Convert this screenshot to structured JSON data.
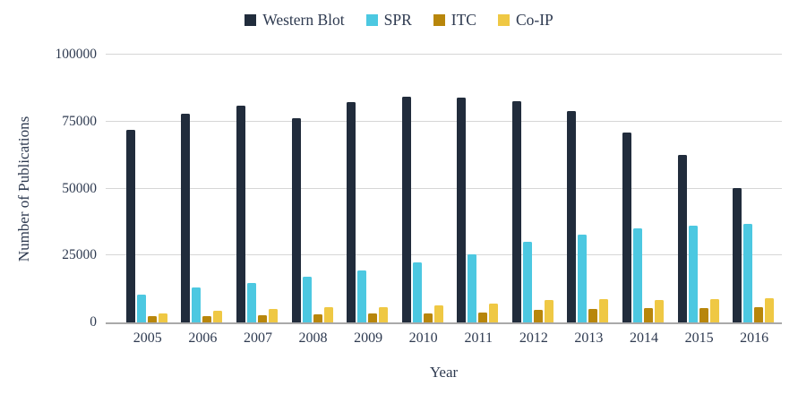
{
  "chart_data": {
    "type": "bar",
    "title": "",
    "xlabel": "Year",
    "ylabel": "Number of Publications",
    "ylim": [
      0,
      100000
    ],
    "yticks": [
      0,
      25000,
      50000,
      75000,
      100000
    ],
    "ytick_labels": [
      "0",
      "25000",
      "50000",
      "75000",
      "100000"
    ],
    "grid": "horizontal",
    "legend_position": "top-center",
    "categories": [
      "2005",
      "2006",
      "2007",
      "2008",
      "2009",
      "2010",
      "2011",
      "2012",
      "2013",
      "2014",
      "2015",
      "2016"
    ],
    "series": [
      {
        "name": "Western Blot",
        "color": "#212c3c",
        "values": [
          72000,
          78000,
          80800,
          76200,
          82200,
          84300,
          83800,
          82500,
          79000,
          70800,
          62500,
          50300
        ]
      },
      {
        "name": "SPR",
        "color": "#4cc8e1",
        "values": [
          10400,
          13000,
          14700,
          17000,
          19300,
          22300,
          25300,
          30000,
          32800,
          35200,
          36200,
          36700
        ]
      },
      {
        "name": "ITC",
        "color": "#b8860b",
        "values": [
          2300,
          2200,
          2800,
          3000,
          3200,
          3400,
          3800,
          4600,
          5100,
          5300,
          5400,
          5800
        ]
      },
      {
        "name": "Co-IP",
        "color": "#efc844",
        "values": [
          3400,
          4300,
          5000,
          5800,
          5700,
          6400,
          7000,
          8300,
          8700,
          8500,
          8700,
          9100
        ]
      }
    ]
  },
  "colors": {
    "text": "#2e3a50",
    "gridline": "#d6d6d6",
    "axis_line": "#a9a9a9",
    "background": "#ffffff"
  }
}
